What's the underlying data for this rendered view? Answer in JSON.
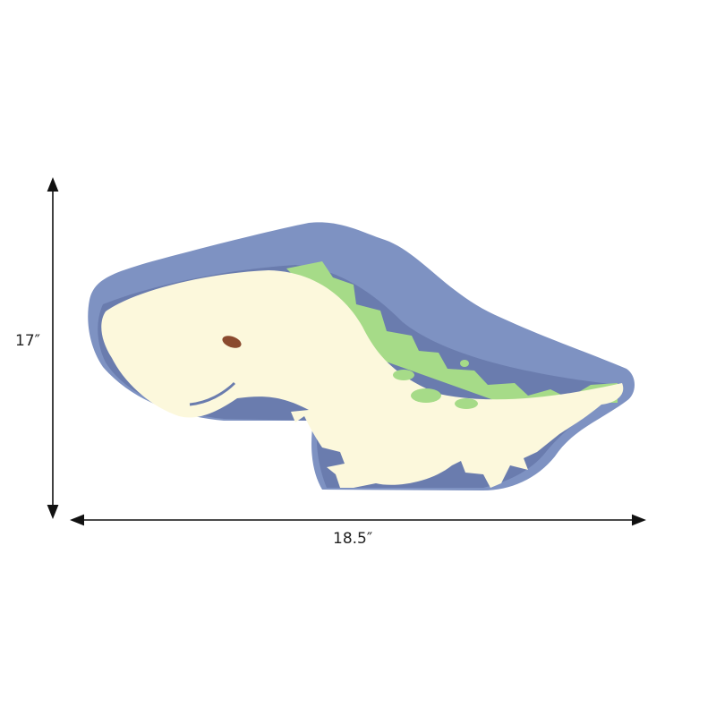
{
  "dimensions": {
    "height_label": "17″",
    "width_label": "18.5″"
  },
  "product": {
    "subject": "dinosaur-ceiling-light",
    "colors": {
      "frame": "#7e92c2",
      "frame_dark": "#6a7cae",
      "body": "#fcf8dc",
      "spikes": "#a6db88",
      "eye": "#8a4a2e"
    }
  }
}
